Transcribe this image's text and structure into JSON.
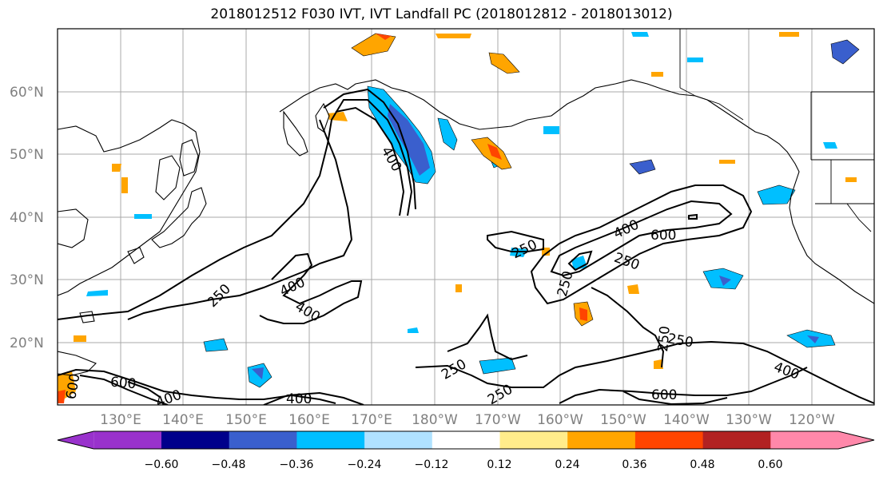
{
  "title": "2018012512 F030 IVT, IVT Landfall PC (2018012812 - 2018013012)",
  "lat_labels": [
    "60°N",
    "50°N",
    "40°N",
    "30°N",
    "20°N"
  ],
  "lon_labels": [
    "130°E",
    "140°E",
    "150°E",
    "160°E",
    "170°E",
    "180°W",
    "170°W",
    "160°W",
    "150°W",
    "140°W",
    "130°W",
    "120°W"
  ],
  "contour_labels": [
    "400",
    "250",
    "400",
    "400",
    "250",
    "250",
    "400",
    "600",
    "250",
    "250",
    "250",
    "600",
    "400",
    "600",
    "400",
    "250",
    "250",
    "400",
    "600"
  ],
  "colorbar": {
    "colors": [
      "#9932cc",
      "#00008b",
      "#3a5fcd",
      "#00bfff",
      "#b0e2ff",
      "#ffffff",
      "#ffec8b",
      "#ffa500",
      "#ff4500",
      "#b22222",
      "#ff88aa"
    ],
    "tick_labels": [
      "−0.60",
      "−0.48",
      "−0.36",
      "−0.24",
      "−0.12",
      "0.12",
      "0.24",
      "0.36",
      "0.48",
      "0.60"
    ]
  }
}
